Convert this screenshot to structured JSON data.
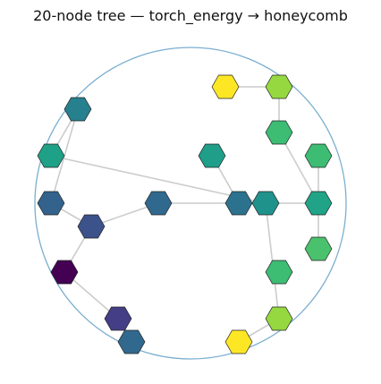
{
  "title": "20-node tree — torch_energy → honeycomb",
  "boundary": {
    "stroke_color": "#7aaed0"
  },
  "edge_color": "#cccccc",
  "node_outline_color": "#222222",
  "nodes": [
    {
      "id": "a",
      "color": "#fde725"
    },
    {
      "id": "b",
      "color": "#95d840"
    },
    {
      "id": "c",
      "color": "#1f9e89"
    },
    {
      "id": "d",
      "color": "#3dbc74"
    },
    {
      "id": "e",
      "color": "#27808e"
    },
    {
      "id": "f",
      "color": "#1fa187"
    },
    {
      "id": "g",
      "color": "#3dbc74"
    },
    {
      "id": "h",
      "color": "#31688e"
    },
    {
      "id": "i",
      "color": "#33638d"
    },
    {
      "id": "j",
      "color": "#2c728e"
    },
    {
      "id": "k",
      "color": "#20928c"
    },
    {
      "id": "l",
      "color": "#20a386"
    },
    {
      "id": "m",
      "color": "#3b528b"
    },
    {
      "id": "n",
      "color": "#4ac16d"
    },
    {
      "id": "o",
      "color": "#440154"
    },
    {
      "id": "p",
      "color": "#3dbc74"
    },
    {
      "id": "q",
      "color": "#95d840"
    },
    {
      "id": "r",
      "color": "#433e85"
    },
    {
      "id": "s",
      "color": "#fde725"
    },
    {
      "id": "t",
      "color": "#31688e"
    }
  ],
  "edges": [
    [
      "a",
      "b"
    ],
    [
      "b",
      "d"
    ],
    [
      "d",
      "l"
    ],
    [
      "g",
      "l"
    ],
    [
      "l",
      "n"
    ],
    [
      "k",
      "l"
    ],
    [
      "k",
      "q"
    ],
    [
      "q",
      "s"
    ],
    [
      "c",
      "j"
    ],
    [
      "j",
      "k"
    ],
    [
      "h",
      "j"
    ],
    [
      "h",
      "m"
    ],
    [
      "m",
      "o"
    ],
    [
      "o",
      "r"
    ],
    [
      "r",
      "t"
    ],
    [
      "e",
      "f"
    ],
    [
      "e",
      "i"
    ],
    [
      "i",
      "m"
    ],
    [
      "f",
      "k"
    ]
  ]
}
